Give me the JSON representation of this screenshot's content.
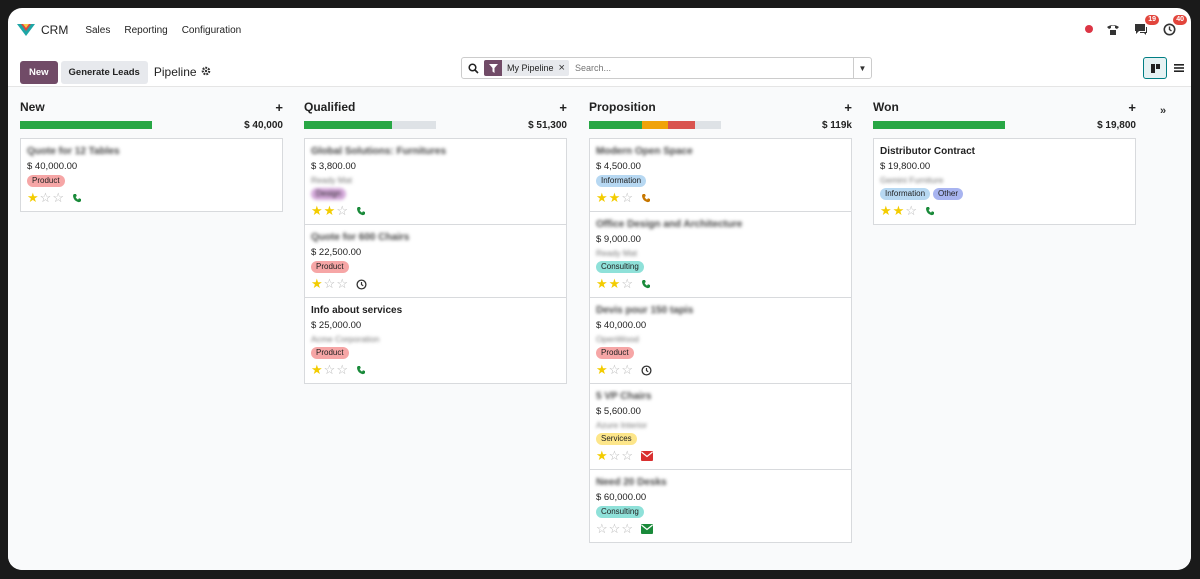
{
  "navbar": {
    "app_name": "CRM",
    "menu": [
      "Sales",
      "Reporting",
      "Configuration"
    ],
    "badges": {
      "chat": "19",
      "activity": "40"
    }
  },
  "control": {
    "new_label": "New",
    "generate_label": "Generate Leads",
    "breadcrumb": "Pipeline",
    "facet_label": "My Pipeline",
    "search_placeholder": "Search..."
  },
  "colors": {
    "primary": "#714b67",
    "green": "#28a745",
    "orange": "#f0a30a",
    "red": "#d9534f",
    "grey": "#dee2e6"
  },
  "columns": [
    {
      "title": "New",
      "total": "$ 40,000",
      "progress": [
        {
          "pct": 100,
          "color": "#28a745"
        }
      ],
      "cards": [
        {
          "title": "Quote for 12 Tables",
          "blur_title": true,
          "amount": "$ 40,000.00",
          "company": "",
          "tags": [
            {
              "label": "Product",
              "bg": "#f6a6a6"
            }
          ],
          "stars": 1,
          "activity": "phone-green"
        }
      ]
    },
    {
      "title": "Qualified",
      "total": "$ 51,300",
      "progress": [
        {
          "pct": 67,
          "color": "#28a745"
        },
        {
          "pct": 33,
          "color": "#dee2e6"
        }
      ],
      "cards": [
        {
          "title": "Global Solutions: Furnitures",
          "blur_title": true,
          "amount": "$ 3,800.00",
          "company": "Ready Mat",
          "tags": [
            {
              "label": "Design",
              "bg": "#d3a8d9",
              "blur": true
            }
          ],
          "stars": 2,
          "activity": "phone-green"
        },
        {
          "title": "Quote for 600 Chairs",
          "blur_title": true,
          "amount": "$ 22,500.00",
          "company": "",
          "tags": [
            {
              "label": "Product",
              "bg": "#f6a6a6"
            }
          ],
          "stars": 1,
          "activity": "clock"
        },
        {
          "title": "Info about services",
          "blur_title": false,
          "amount": "$ 25,000.00",
          "company": "Acme Corporation",
          "tags": [
            {
              "label": "Product",
              "bg": "#f6a6a6"
            }
          ],
          "stars": 1,
          "activity": "phone-green"
        }
      ]
    },
    {
      "title": "Proposition",
      "total": "$ 119k",
      "progress": [
        {
          "pct": 40,
          "color": "#28a745"
        },
        {
          "pct": 20,
          "color": "#f0a30a"
        },
        {
          "pct": 20,
          "color": "#d9534f"
        },
        {
          "pct": 20,
          "color": "#dee2e6"
        }
      ],
      "cards": [
        {
          "title": "Modern Open Space",
          "blur_title": true,
          "amount": "$ 4,500.00",
          "company": "",
          "tags": [
            {
              "label": "Information",
              "bg": "#b7d8f2"
            }
          ],
          "stars": 2,
          "activity": "phone-orange"
        },
        {
          "title": "Office Design and Architecture",
          "blur_title": true,
          "amount": "$ 9,000.00",
          "company": "Ready Mat",
          "tags": [
            {
              "label": "Consulting",
              "bg": "#8fe1d9"
            }
          ],
          "stars": 2,
          "activity": "phone-green"
        },
        {
          "title": "Devis pour 150 tapis",
          "blur_title": true,
          "amount": "$ 40,000.00",
          "company": "OpenWood",
          "tags": [
            {
              "label": "Product",
              "bg": "#f6a6a6"
            }
          ],
          "stars": 1,
          "activity": "clock"
        },
        {
          "title": "5 VP Chairs",
          "blur_title": true,
          "amount": "$ 5,600.00",
          "company": "Azure Interior",
          "tags": [
            {
              "label": "Services",
              "bg": "#fde68a"
            }
          ],
          "stars": 1,
          "activity": "mail-red"
        },
        {
          "title": "Need 20 Desks",
          "blur_title": true,
          "amount": "$ 60,000.00",
          "company": "",
          "tags": [
            {
              "label": "Consulting",
              "bg": "#8fe1d9"
            }
          ],
          "stars": 0,
          "activity": "mail-green"
        }
      ]
    },
    {
      "title": "Won",
      "total": "$ 19,800",
      "progress": [
        {
          "pct": 100,
          "color": "#28a745"
        }
      ],
      "cards": [
        {
          "title": "Distributor Contract",
          "blur_title": false,
          "amount": "$ 19,800.00",
          "company": "Gemini Furniture",
          "tags": [
            {
              "label": "Information",
              "bg": "#b7d8f2"
            },
            {
              "label": "Other",
              "bg": "#a8b4f0"
            }
          ],
          "stars": 2,
          "activity": "phone-green"
        }
      ]
    }
  ]
}
